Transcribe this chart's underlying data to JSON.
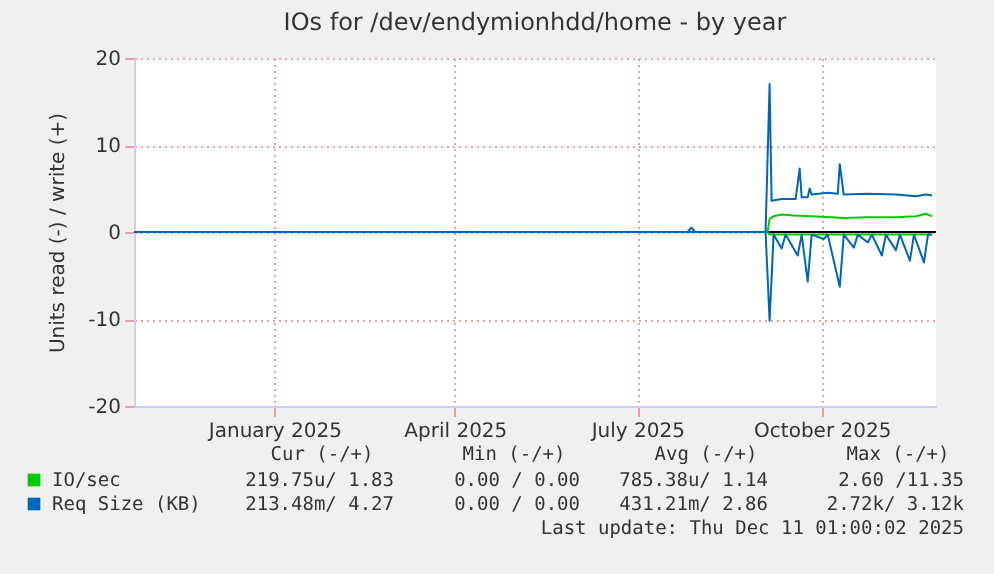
{
  "chart_data": {
    "type": "line",
    "title": "IOs for /dev/endymionhdd/home - by year",
    "ylabel": "Units read (-) / write (+)",
    "xlim": [
      "2024-11-06",
      "2025-12-11"
    ],
    "xticks": [
      {
        "value": "2025-01-15",
        "label": "January 2025"
      },
      {
        "value": "2025-04-15",
        "label": "April 2025"
      },
      {
        "value": "2025-07-15",
        "label": "July 2025"
      },
      {
        "value": "2025-10-15",
        "label": "October 2025"
      }
    ],
    "ylim": [
      -20,
      20
    ],
    "yticks": [
      -20,
      -10,
      0,
      10,
      20
    ],
    "grid": true,
    "legend": "bottom",
    "marker": "none",
    "line_style": "solid",
    "series": [
      {
        "name": "IO/sec",
        "color": "#00cc00",
        "x": [
          "2025-09-18",
          "2025-09-19",
          "2025-09-21",
          "2025-09-25",
          "2025-10-01",
          "2025-10-10",
          "2025-10-20",
          "2025-10-26",
          "2025-11-07",
          "2025-11-21",
          "2025-12-01",
          "2025-12-06",
          "2025-12-09"
        ],
        "values": [
          0,
          1.5,
          1.8,
          2.0,
          1.9,
          1.8,
          1.7,
          1.6,
          1.7,
          1.7,
          1.8,
          2.1,
          1.8
        ]
      },
      {
        "color": "#00cc00",
        "x": [
          "2025-09-18",
          "2025-09-19",
          "2025-10-20",
          "2025-11-20",
          "2025-12-09"
        ],
        "values": [
          0,
          -0.3,
          -0.3,
          -0.3,
          -0.3
        ]
      },
      {
        "name": "Req Size (KB)",
        "color": "#0066b3",
        "x": [
          "2024-11-06",
          "2025-08-09",
          "2025-08-11",
          "2025-08-13",
          "2025-09-17",
          "2025-09-19",
          "2025-09-20",
          "2025-09-25",
          "2025-10-02",
          "2025-10-04",
          "2025-10-05",
          "2025-10-08",
          "2025-10-09",
          "2025-10-10",
          "2025-10-18",
          "2025-10-23",
          "2025-10-24",
          "2025-10-26",
          "2025-11-07",
          "2025-11-21",
          "2025-12-01",
          "2025-12-06",
          "2025-12-09"
        ],
        "values": [
          0,
          0,
          0.5,
          0,
          0,
          17.0,
          3.6,
          3.8,
          3.8,
          7.3,
          4.0,
          4.0,
          5.0,
          4.3,
          4.5,
          4.4,
          7.8,
          4.3,
          4.4,
          4.3,
          4.1,
          4.3,
          4.2
        ]
      },
      {
        "color": "#0066b3",
        "x": [
          "2024-11-06",
          "2025-09-17",
          "2025-09-19",
          "2025-09-21",
          "2025-09-25",
          "2025-09-27",
          "2025-10-03",
          "2025-10-05",
          "2025-10-08",
          "2025-10-10",
          "2025-10-16",
          "2025-10-18",
          "2025-10-24",
          "2025-10-26",
          "2025-10-31",
          "2025-11-02",
          "2025-11-07",
          "2025-11-09",
          "2025-11-14",
          "2025-11-16",
          "2025-11-21",
          "2025-11-23",
          "2025-11-28",
          "2025-11-30",
          "2025-12-05",
          "2025-12-07",
          "2025-12-09"
        ],
        "values": [
          0,
          0,
          -10.2,
          -0.3,
          -1.9,
          -0.3,
          -2.7,
          -0.3,
          -5.7,
          -0.3,
          -0.8,
          -0.3,
          -6.3,
          -0.3,
          -1.8,
          -0.3,
          -1.2,
          -0.3,
          -2.7,
          -0.3,
          -2.1,
          -0.3,
          -3.3,
          -0.3,
          -3.5,
          -0.3,
          -0.3
        ]
      }
    ],
    "annotations": [
      "Cur (-/+)",
      "Min (-/+)",
      "Avg (-/+)",
      "Max (-/+)",
      "219.75u/ 1.83",
      "0.00 / 0.00",
      "785.38u/ 1.14",
      "2.60 /11.35",
      "213.48m/ 4.27",
      "0.00 / 0.00",
      "431.21m/ 2.86",
      "2.72k/ 3.12k",
      "Last update: Thu Dec 11 01:00:02 2025"
    ]
  }
}
